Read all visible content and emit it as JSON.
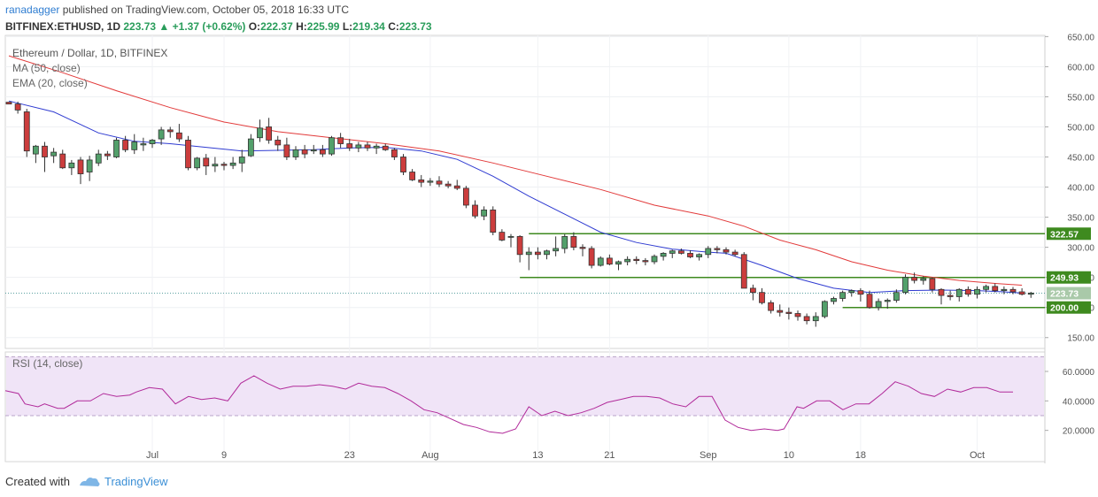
{
  "header": {
    "author": "ranadagger",
    "published_text": "published on TradingView.com, October 05, 2018 16:33 UTC",
    "symbol": "BITFINEX:ETHUSD, 1D",
    "last": "223.73",
    "change": "+1.37 (+0.62%)",
    "o_label": "O:",
    "o": "222.37",
    "h_label": "H:",
    "h": "225.99",
    "l_label": "L:",
    "l": "219.34",
    "c_label": "C:",
    "c": "223.73"
  },
  "footer": {
    "created_with": "Created with",
    "brand": "TradingView"
  },
  "chart_data": {
    "type": "candlestick",
    "title": "Ethereum / Dollar, 1D, BITFINEX",
    "legend": [
      "MA (50, close)",
      "EMA (20, close)"
    ],
    "colors": {
      "up": "#53a06b",
      "down": "#cc3d3d",
      "ma50": "#e23a3a",
      "ema20": "#2f3bd1",
      "level_line": "#3e8a1f",
      "level_tag": "#3e8a1f",
      "price_tag": "#a9c9a9",
      "rsi_line": "#b12a9a",
      "rsi_band": "#f0e4f7"
    },
    "y_ticks": [
      "650.00",
      "600.00",
      "550.00",
      "500.00",
      "450.00",
      "400.00",
      "350.00",
      "300.00",
      "250.00",
      "200.00",
      "150.00"
    ],
    "ylim": [
      132,
      652
    ],
    "x_ticks": [
      {
        "label": "Jul",
        "index": 16
      },
      {
        "label": "9",
        "index": 24
      },
      {
        "label": "23",
        "index": 38
      },
      {
        "label": "Aug",
        "index": 47
      },
      {
        "label": "13",
        "index": 59
      },
      {
        "label": "21",
        "index": 67
      },
      {
        "label": "Sep",
        "index": 78
      },
      {
        "label": "10",
        "index": 87
      },
      {
        "label": "18",
        "index": 95
      },
      {
        "label": "Oct",
        "index": 108
      }
    ],
    "candles": [
      [
        541,
        541,
        538,
        538
      ],
      [
        538,
        542,
        522,
        528
      ],
      [
        525,
        530,
        450,
        460
      ],
      [
        455,
        470,
        440,
        468
      ],
      [
        468,
        475,
        425,
        450
      ],
      [
        452,
        465,
        440,
        458
      ],
      [
        455,
        462,
        430,
        432
      ],
      [
        432,
        445,
        420,
        440
      ],
      [
        445,
        450,
        405,
        422
      ],
      [
        425,
        452,
        410,
        445
      ],
      [
        440,
        462,
        435,
        455
      ],
      [
        455,
        460,
        445,
        452
      ],
      [
        450,
        482,
        448,
        478
      ],
      [
        478,
        485,
        458,
        462
      ],
      [
        462,
        488,
        455,
        475
      ],
      [
        470,
        482,
        460,
        472
      ],
      [
        472,
        480,
        465,
        478
      ],
      [
        480,
        500,
        470,
        495
      ],
      [
        495,
        500,
        482,
        492
      ],
      [
        490,
        505,
        475,
        480
      ],
      [
        478,
        485,
        428,
        432
      ],
      [
        432,
        450,
        428,
        448
      ],
      [
        448,
        455,
        420,
        435
      ],
      [
        435,
        450,
        425,
        438
      ],
      [
        438,
        442,
        428,
        436
      ],
      [
        436,
        450,
        430,
        440
      ],
      [
        440,
        462,
        425,
        450
      ],
      [
        452,
        488,
        450,
        480
      ],
      [
        482,
        512,
        475,
        498
      ],
      [
        500,
        515,
        472,
        478
      ],
      [
        478,
        485,
        460,
        470
      ],
      [
        470,
        482,
        445,
        450
      ],
      [
        450,
        468,
        445,
        462
      ],
      [
        462,
        470,
        448,
        455
      ],
      [
        460,
        470,
        455,
        462
      ],
      [
        462,
        470,
        450,
        455
      ],
      [
        455,
        485,
        452,
        482
      ],
      [
        482,
        490,
        465,
        472
      ],
      [
        472,
        480,
        460,
        465
      ],
      [
        465,
        475,
        458,
        470
      ],
      [
        470,
        475,
        460,
        465
      ],
      [
        465,
        472,
        455,
        468
      ],
      [
        468,
        472,
        460,
        462
      ],
      [
        462,
        465,
        445,
        450
      ],
      [
        450,
        455,
        420,
        425
      ],
      [
        425,
        430,
        410,
        412
      ],
      [
        412,
        420,
        400,
        408
      ],
      [
        408,
        415,
        402,
        410
      ],
      [
        410,
        418,
        400,
        405
      ],
      [
        405,
        410,
        398,
        402
      ],
      [
        402,
        412,
        395,
        398
      ],
      [
        398,
        402,
        365,
        370
      ],
      [
        370,
        378,
        348,
        352
      ],
      [
        352,
        368,
        345,
        362
      ],
      [
        362,
        368,
        320,
        325
      ],
      [
        325,
        330,
        310,
        312
      ],
      [
        318,
        322,
        300,
        318
      ],
      [
        318,
        320,
        275,
        288
      ],
      [
        288,
        300,
        262,
        292
      ],
      [
        292,
        300,
        280,
        288
      ],
      [
        288,
        296,
        280,
        294
      ],
      [
        294,
        318,
        285,
        298
      ],
      [
        298,
        322,
        290,
        318
      ],
      [
        318,
        325,
        295,
        300
      ],
      [
        300,
        305,
        285,
        298
      ],
      [
        298,
        302,
        265,
        270
      ],
      [
        270,
        285,
        268,
        282
      ],
      [
        282,
        288,
        270,
        272
      ],
      [
        272,
        278,
        262,
        276
      ],
      [
        276,
        285,
        270,
        280
      ],
      [
        280,
        285,
        272,
        278
      ],
      [
        278,
        282,
        270,
        276
      ],
      [
        276,
        288,
        272,
        285
      ],
      [
        285,
        292,
        278,
        290
      ],
      [
        290,
        296,
        282,
        294
      ],
      [
        294,
        298,
        288,
        290
      ],
      [
        290,
        295,
        282,
        284
      ],
      [
        284,
        290,
        278,
        288
      ],
      [
        288,
        302,
        282,
        298
      ],
      [
        298,
        302,
        290,
        296
      ],
      [
        296,
        300,
        288,
        292
      ],
      [
        292,
        296,
        285,
        288
      ],
      [
        288,
        292,
        235,
        232
      ],
      [
        232,
        238,
        212,
        225
      ],
      [
        225,
        232,
        205,
        208
      ],
      [
        208,
        212,
        190,
        195
      ],
      [
        195,
        205,
        185,
        192
      ],
      [
        192,
        200,
        180,
        190
      ],
      [
        190,
        195,
        178,
        185
      ],
      [
        185,
        190,
        172,
        178
      ],
      [
        178,
        192,
        168,
        185
      ],
      [
        185,
        212,
        182,
        210
      ],
      [
        210,
        218,
        205,
        215
      ],
      [
        215,
        228,
        210,
        225
      ],
      [
        225,
        230,
        218,
        228
      ],
      [
        228,
        232,
        210,
        222
      ],
      [
        222,
        228,
        198,
        200
      ],
      [
        200,
        215,
        195,
        210
      ],
      [
        210,
        215,
        198,
        212
      ],
      [
        212,
        230,
        208,
        225
      ],
      [
        225,
        255,
        222,
        250
      ],
      [
        250,
        258,
        240,
        245
      ],
      [
        245,
        252,
        238,
        248
      ],
      [
        248,
        250,
        225,
        230
      ],
      [
        230,
        232,
        205,
        220
      ],
      [
        220,
        228,
        212,
        218
      ],
      [
        218,
        232,
        210,
        230
      ],
      [
        230,
        235,
        218,
        222
      ],
      [
        222,
        235,
        215,
        230
      ],
      [
        230,
        238,
        225,
        235
      ],
      [
        235,
        240,
        225,
        228
      ],
      [
        228,
        235,
        222,
        230
      ],
      [
        230,
        234,
        222,
        226
      ],
      [
        226,
        232,
        220,
        222
      ],
      [
        222,
        226,
        216,
        224
      ]
    ],
    "ema20": [
      [
        0,
        543
      ],
      [
        5,
        525
      ],
      [
        10,
        490
      ],
      [
        14,
        476
      ],
      [
        18,
        472
      ],
      [
        22,
        466
      ],
      [
        26,
        460
      ],
      [
        30,
        461
      ],
      [
        34,
        462
      ],
      [
        38,
        465
      ],
      [
        42,
        466
      ],
      [
        46,
        460
      ],
      [
        50,
        446
      ],
      [
        54,
        418
      ],
      [
        58,
        385
      ],
      [
        62,
        355
      ],
      [
        66,
        325
      ],
      [
        70,
        308
      ],
      [
        74,
        297
      ],
      [
        78,
        292
      ],
      [
        80,
        290
      ],
      [
        84,
        270
      ],
      [
        88,
        248
      ],
      [
        92,
        232
      ],
      [
        96,
        225
      ],
      [
        100,
        228
      ],
      [
        104,
        229
      ],
      [
        108,
        228
      ],
      [
        111,
        226
      ],
      [
        113,
        224
      ]
    ],
    "ma50": [
      [
        0,
        618
      ],
      [
        6,
        590
      ],
      [
        12,
        560
      ],
      [
        18,
        532
      ],
      [
        24,
        508
      ],
      [
        30,
        492
      ],
      [
        36,
        482
      ],
      [
        42,
        472
      ],
      [
        48,
        460
      ],
      [
        54,
        440
      ],
      [
        60,
        418
      ],
      [
        66,
        396
      ],
      [
        72,
        370
      ],
      [
        78,
        352
      ],
      [
        82,
        335
      ],
      [
        86,
        312
      ],
      [
        90,
        296
      ],
      [
        94,
        276
      ],
      [
        98,
        262
      ],
      [
        102,
        252
      ],
      [
        106,
        245
      ],
      [
        110,
        240
      ],
      [
        113,
        237
      ]
    ],
    "levels": [
      {
        "value": 322.57,
        "label": "322.57",
        "from": 58
      },
      {
        "value": 249.93,
        "label": "249.93",
        "from": 57
      },
      {
        "value": 200.0,
        "label": "200.00",
        "from": 93
      }
    ],
    "current_price": {
      "value": 223.73,
      "label": "223.73"
    },
    "rsi": {
      "title": "RSI (14, close)",
      "y_ticks": [
        "60.0000",
        "40.0000",
        "20.0000"
      ],
      "ylim": [
        12,
        72
      ],
      "band": [
        30,
        70
      ],
      "values": [
        [
          0,
          47
        ],
        [
          2,
          45
        ],
        [
          3,
          38
        ],
        [
          5,
          36
        ],
        [
          6,
          38
        ],
        [
          8,
          35
        ],
        [
          9,
          35
        ],
        [
          11,
          40
        ],
        [
          13,
          40
        ],
        [
          15,
          45
        ],
        [
          17,
          43
        ],
        [
          19,
          44
        ],
        [
          20,
          46
        ],
        [
          22,
          49
        ],
        [
          24,
          48
        ],
        [
          26,
          38
        ],
        [
          28,
          43
        ],
        [
          30,
          41
        ],
        [
          32,
          42
        ],
        [
          34,
          40
        ],
        [
          36,
          52
        ],
        [
          38,
          57
        ],
        [
          40,
          52
        ],
        [
          42,
          48
        ],
        [
          44,
          50
        ],
        [
          46,
          50
        ],
        [
          48,
          51
        ],
        [
          50,
          50
        ],
        [
          52,
          48
        ],
        [
          54,
          52
        ],
        [
          56,
          50
        ],
        [
          58,
          49
        ],
        [
          60,
          45
        ],
        [
          62,
          40
        ],
        [
          64,
          34
        ],
        [
          66,
          32
        ],
        [
          68,
          28
        ],
        [
          70,
          24
        ],
        [
          72,
          22
        ],
        [
          74,
          19
        ],
        [
          76,
          18
        ],
        [
          78,
          21
        ],
        [
          80,
          36
        ],
        [
          82,
          30
        ],
        [
          84,
          33
        ],
        [
          86,
          30
        ],
        [
          88,
          32
        ],
        [
          90,
          35
        ],
        [
          92,
          39
        ],
        [
          94,
          41
        ],
        [
          96,
          43
        ],
        [
          98,
          43
        ],
        [
          100,
          42
        ],
        [
          102,
          38
        ],
        [
          104,
          36
        ],
        [
          106,
          43
        ],
        [
          108,
          43
        ],
        [
          110,
          27
        ],
        [
          112,
          22
        ],
        [
          114,
          20
        ],
        [
          116,
          21
        ],
        [
          118,
          20
        ],
        [
          119,
          21
        ],
        [
          121,
          36
        ],
        [
          122,
          35
        ],
        [
          124,
          40
        ],
        [
          126,
          40
        ],
        [
          128,
          34
        ],
        [
          130,
          38
        ],
        [
          132,
          38
        ],
        [
          134,
          45
        ],
        [
          136,
          53
        ],
        [
          138,
          50
        ],
        [
          140,
          45
        ],
        [
          142,
          43
        ],
        [
          144,
          48
        ],
        [
          146,
          46
        ],
        [
          148,
          49
        ],
        [
          150,
          49
        ],
        [
          152,
          46
        ],
        [
          154,
          46
        ]
      ]
    }
  }
}
